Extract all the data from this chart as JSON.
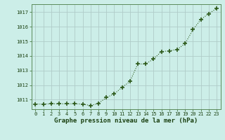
{
  "x": [
    0,
    1,
    2,
    3,
    4,
    5,
    6,
    7,
    8,
    9,
    10,
    11,
    12,
    13,
    14,
    15,
    16,
    17,
    18,
    19,
    20,
    21,
    22,
    23
  ],
  "y": [
    1010.7,
    1010.7,
    1010.72,
    1010.72,
    1010.72,
    1010.72,
    1010.7,
    1010.6,
    1010.75,
    1011.15,
    1011.4,
    1011.85,
    1012.25,
    1013.45,
    1013.45,
    1013.8,
    1014.3,
    1014.35,
    1014.45,
    1014.85,
    1015.8,
    1016.5,
    1016.9,
    1017.25
  ],
  "line_color": "#2d5a1b",
  "marker_color": "#2d5a1b",
  "bg_color": "#cceee8",
  "grid_color": "#b0ccc8",
  "xlabel": "Graphe pression niveau de la mer (hPa)",
  "xlabel_color": "#1a4010",
  "tick_color": "#1a4010",
  "ylim": [
    1010.35,
    1017.55
  ],
  "yticks": [
    1011,
    1012,
    1013,
    1014,
    1015,
    1016,
    1017
  ],
  "xticks": [
    0,
    1,
    2,
    3,
    4,
    5,
    6,
    7,
    8,
    9,
    10,
    11,
    12,
    13,
    14,
    15,
    16,
    17,
    18,
    19,
    20,
    21,
    22,
    23
  ]
}
